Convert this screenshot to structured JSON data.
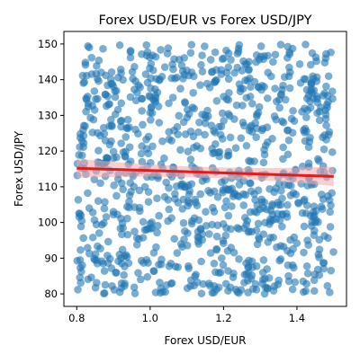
{
  "chart_data": {
    "type": "scatter",
    "title": "Forex USD/EUR vs Forex USD/JPY",
    "xlabel": "Forex USD/EUR",
    "ylabel": "Forex USD/JPY",
    "xlim": [
      0.765,
      1.535
    ],
    "ylim": [
      76.5,
      153.5
    ],
    "xticks": [
      0.8,
      1.0,
      1.2,
      1.4
    ],
    "xtick_labels": [
      "0.8",
      "1.0",
      "1.2",
      "1.4"
    ],
    "yticks": [
      80,
      90,
      100,
      110,
      120,
      130,
      140,
      150
    ],
    "ytick_labels": [
      "80",
      "90",
      "100",
      "110",
      "120",
      "130",
      "140",
      "150"
    ],
    "grid": false,
    "point_count": 1000,
    "point_distribution": {
      "x_range": [
        0.8,
        1.5
      ],
      "y_range": [
        80,
        150
      ]
    },
    "regression_line": {
      "x": [
        0.8,
        1.5
      ],
      "y": [
        115.2,
        112.9
      ],
      "color": "#e41a1c"
    },
    "confidence_band_color": "#f4a6a6",
    "marker_color": "#1f77b4",
    "marker_alpha": 0.6
  }
}
